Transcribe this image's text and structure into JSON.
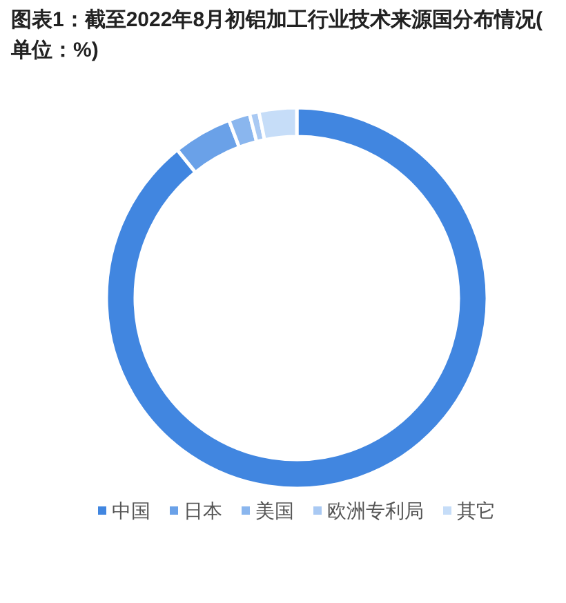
{
  "chart_data": {
    "type": "donut",
    "title": "图表1：截至2022年8月初铝加工行业技术来源国分布情况(单位：%)",
    "categories": [
      "中国",
      "日本",
      "美国",
      "欧洲专利局",
      "其它"
    ],
    "values": [
      89.2,
      5.0,
      1.8,
      0.8,
      3.2
    ],
    "colors": [
      "#4186e0",
      "#6aa1e8",
      "#8ab6ee",
      "#a9c9f3",
      "#c6ddf8"
    ],
    "legend": "bottom"
  }
}
